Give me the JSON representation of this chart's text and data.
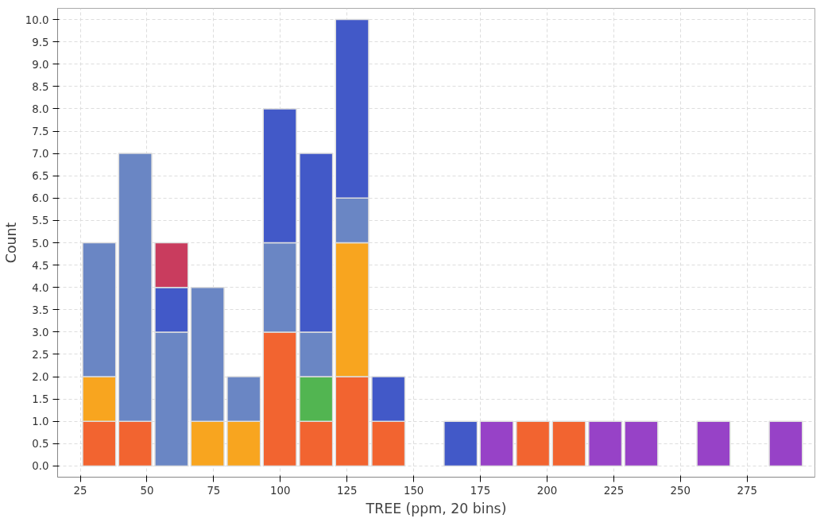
{
  "chart_data": {
    "type": "bar",
    "stacked": true,
    "xlabel": "TREE (ppm, 20 bins)",
    "ylabel": "Count",
    "x": [
      32.1,
      45.6,
      59.2,
      72.7,
      86.3,
      99.8,
      113.4,
      126.9,
      140.5,
      154.0,
      167.6,
      181.1,
      194.7,
      208.2,
      221.8,
      235.3,
      248.9,
      262.4,
      276.0,
      289.5
    ],
    "series": [
      {
        "color": "#f26430",
        "values": [
          1,
          1,
          0,
          0,
          0,
          3,
          1,
          2,
          1,
          0,
          0,
          0,
          1,
          1,
          0,
          0,
          0,
          0,
          0,
          0
        ]
      },
      {
        "color": "#f8a51f",
        "values": [
          1,
          0,
          0,
          1,
          1,
          0,
          0,
          3,
          0,
          0,
          0,
          0,
          0,
          0,
          0,
          0,
          0,
          0,
          0,
          0
        ]
      },
      {
        "color": "#52b551",
        "values": [
          0,
          0,
          0,
          0,
          0,
          0,
          1,
          0,
          0,
          0,
          0,
          0,
          0,
          0,
          0,
          0,
          0,
          0,
          0,
          0
        ]
      },
      {
        "color": "#6a86c4",
        "values": [
          3,
          6,
          3,
          3,
          1,
          2,
          1,
          1,
          0,
          0,
          0,
          0,
          0,
          0,
          0,
          0,
          0,
          0,
          0,
          0
        ]
      },
      {
        "color": "#4259c8",
        "values": [
          0,
          0,
          1,
          0,
          0,
          3,
          4,
          4,
          1,
          0,
          1,
          0,
          0,
          0,
          0,
          0,
          0,
          0,
          0,
          0
        ]
      },
      {
        "color": "#c93c5e",
        "values": [
          0,
          0,
          1,
          0,
          0,
          0,
          0,
          0,
          0,
          0,
          0,
          0,
          0,
          0,
          0,
          0,
          0,
          0,
          0,
          0
        ]
      },
      {
        "color": "#9742c7",
        "values": [
          0,
          0,
          0,
          0,
          0,
          0,
          0,
          0,
          0,
          0,
          0,
          1,
          0,
          0,
          1,
          1,
          0,
          1,
          0,
          1
        ]
      }
    ],
    "xlim": [
      16.5,
      300.4
    ],
    "xticks": [
      25,
      50,
      75,
      100,
      125,
      150,
      175,
      200,
      225,
      250,
      275
    ],
    "ylim": [
      -0.25,
      10.25
    ],
    "yticks": [
      {
        "value": 0,
        "label": "0.0"
      },
      {
        "value": 0.5,
        "label": "0.5"
      },
      {
        "value": 1,
        "label": "1.0"
      },
      {
        "value": 1.5,
        "label": "1.5"
      },
      {
        "value": 2,
        "label": "2.0"
      },
      {
        "value": 2.5,
        "label": "2.5"
      },
      {
        "value": 3,
        "label": "3.0"
      },
      {
        "value": 3.5,
        "label": "3.5"
      },
      {
        "value": 4,
        "label": "4.0"
      },
      {
        "value": 4.5,
        "label": "4.5"
      },
      {
        "value": 5,
        "label": "5.0"
      },
      {
        "value": 5.5,
        "label": "5.5"
      },
      {
        "value": 6,
        "label": "6.0"
      },
      {
        "value": 6.5,
        "label": "6.5"
      },
      {
        "value": 7,
        "label": "7.0"
      },
      {
        "value": 7.5,
        "label": "7.5"
      },
      {
        "value": 8,
        "label": "8.0"
      },
      {
        "value": 8.5,
        "label": "8.5"
      },
      {
        "value": 9,
        "label": "9.0"
      },
      {
        "value": 9.5,
        "label": "9.5"
      },
      {
        "value": 10,
        "label": "10.0"
      }
    ],
    "grid": true
  }
}
